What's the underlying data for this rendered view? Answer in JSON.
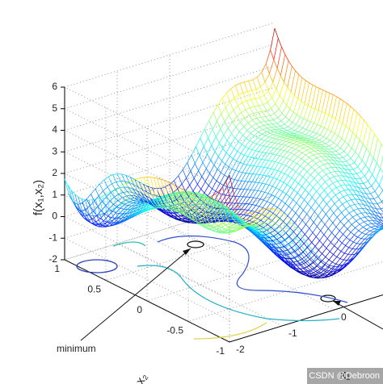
{
  "chart_data": {
    "type": "surface",
    "x_label": "x₁",
    "y_label": "x₂",
    "z_label": "f(x₁,x₂)",
    "xlim": [
      -2,
      2
    ],
    "xticks": [
      -2,
      -1,
      0
    ],
    "ylim": [
      -1,
      1
    ],
    "yticks": [
      -1,
      -0.5,
      0,
      0.5,
      1
    ],
    "zlim": [
      -2,
      6
    ],
    "zticks": [
      -2,
      -1,
      0,
      1,
      2,
      3,
      4,
      5,
      6
    ],
    "grid": true,
    "annotation": "minimum",
    "watermark": "CSDN @Debroon"
  }
}
